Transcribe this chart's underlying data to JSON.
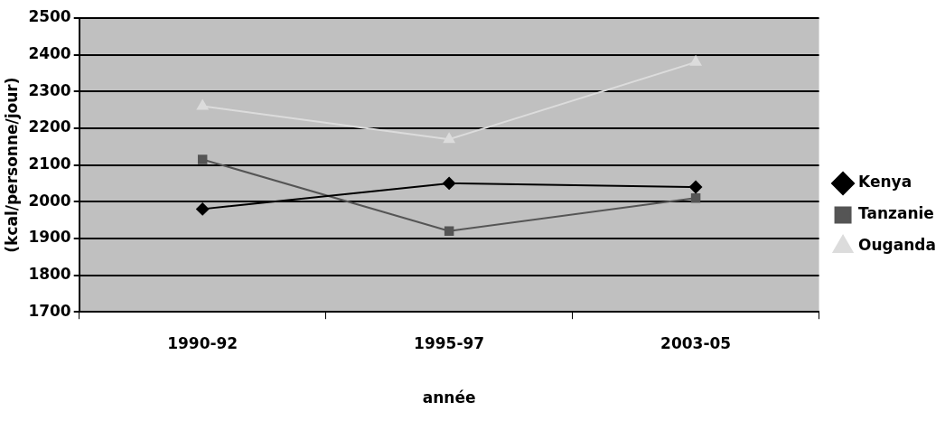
{
  "chart_data": {
    "type": "line",
    "xlabel": "année",
    "ylabel": "(kcal/personne/jour)",
    "categories": [
      "1990-92",
      "1995-97",
      "2003-05"
    ],
    "series": [
      {
        "name": "Kenya",
        "color": "#000000",
        "marker": "diamond",
        "values": [
          1980,
          2050,
          2040
        ]
      },
      {
        "name": "Tanzanie",
        "color": "#555555",
        "marker": "square",
        "values": [
          2115,
          1920,
          2010
        ]
      },
      {
        "name": "Ouganda",
        "color": "#dcdcdc",
        "marker": "triangle",
        "values": [
          2260,
          2170,
          2380
        ]
      }
    ],
    "ylim": [
      1700,
      2500
    ],
    "yticks": [
      1700,
      1800,
      1900,
      2000,
      2100,
      2200,
      2300,
      2400,
      2500
    ],
    "grid": "y",
    "legend": "right",
    "line_style": "solid"
  }
}
